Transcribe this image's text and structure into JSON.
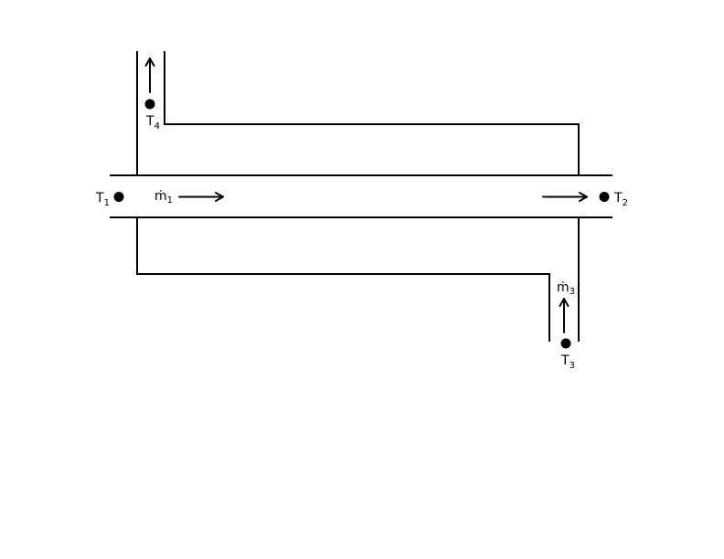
{
  "diagram": {
    "labels": {
      "t1": {
        "main": "T",
        "sub": "1"
      },
      "t2": {
        "main": "T",
        "sub": "2"
      },
      "t3": {
        "main": "T",
        "sub": "3"
      },
      "t4": {
        "main": "T",
        "sub": "4"
      },
      "m1": {
        "main": "ṁ",
        "sub": "1"
      },
      "m3": {
        "main": "ṁ",
        "sub": "3"
      }
    },
    "colors": {
      "stroke": "#000000",
      "background": "#ffffff"
    }
  }
}
